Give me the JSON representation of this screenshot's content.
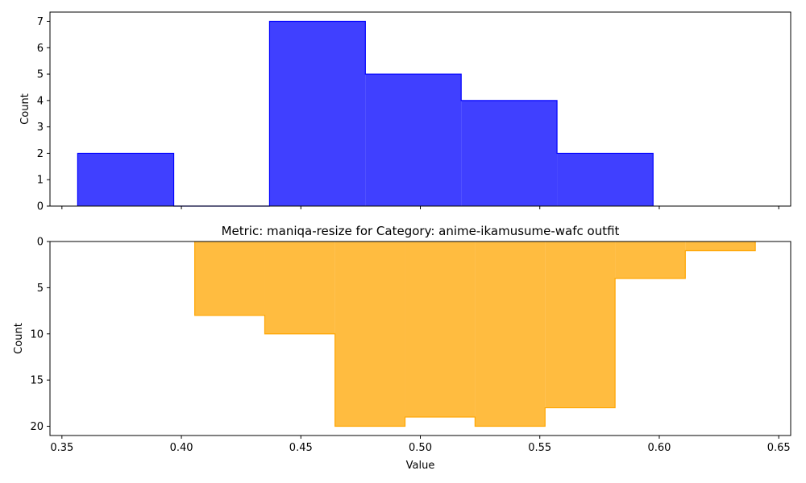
{
  "chart_data": [
    {
      "type": "histogram",
      "orientation": "up",
      "title": "",
      "xlabel": "",
      "ylabel": "Count",
      "color": "#0000ff",
      "fill_opacity": 0.75,
      "bin_edges": [
        0.3566,
        0.3968,
        0.4369,
        0.477,
        0.5171,
        0.5572,
        0.5974
      ],
      "counts": [
        2,
        0,
        7,
        5,
        4,
        2
      ],
      "xlim": [
        0.345,
        0.655
      ],
      "ylim": [
        0,
        7.35
      ],
      "yticks": [
        0,
        1,
        2,
        3,
        4,
        5,
        6,
        7
      ],
      "xtick_labels_shown": false
    },
    {
      "type": "histogram",
      "orientation": "down",
      "title": "Metric: maniqa-resize for Category: anime-ikamusume-wafc outfit",
      "xlabel": "Value",
      "ylabel": "Count",
      "color": "#ffa500",
      "fill_opacity": 0.75,
      "bin_edges": [
        0.4056,
        0.4349,
        0.4643,
        0.4936,
        0.5229,
        0.5522,
        0.5815,
        0.6109,
        0.6402
      ],
      "counts": [
        8,
        10,
        20,
        19,
        20,
        18,
        4,
        1
      ],
      "xlim": [
        0.345,
        0.655
      ],
      "ylim": [
        21,
        0
      ],
      "yticks": [
        0,
        5,
        10,
        15,
        20
      ],
      "xticks": [
        0.35,
        0.4,
        0.45,
        0.5,
        0.55,
        0.6,
        0.65
      ],
      "xtick_labels": [
        "0.35",
        "0.40",
        "0.45",
        "0.50",
        "0.55",
        "0.60",
        "0.65"
      ]
    }
  ]
}
